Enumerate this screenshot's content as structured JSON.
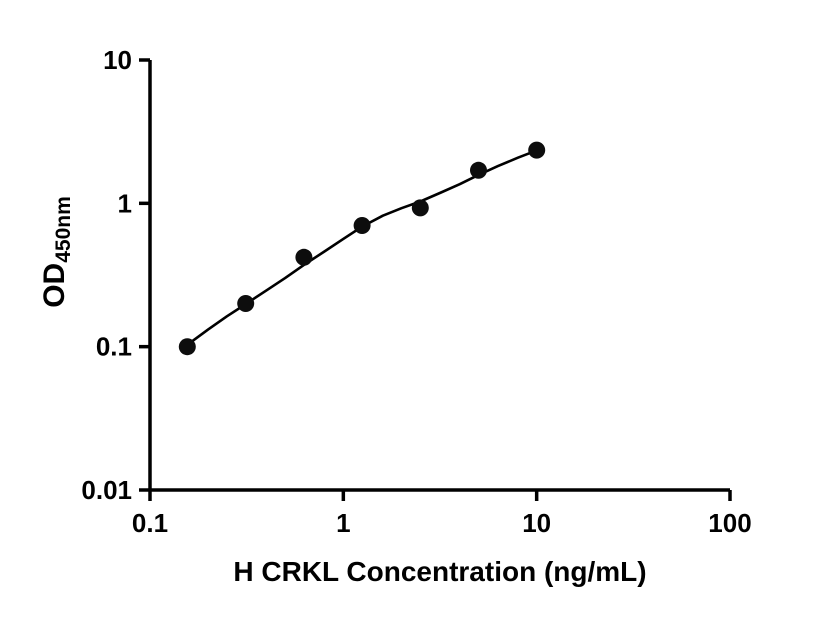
{
  "chart_data": {
    "type": "scatter",
    "title": "",
    "xlabel": "H CRKL Concentration (ng/mL)",
    "ylabel_main": "OD",
    "ylabel_sub": "450nm",
    "x_scale": "log",
    "y_scale": "log",
    "xlim": [
      0.1,
      100
    ],
    "ylim": [
      0.01,
      10
    ],
    "x_ticks": [
      0.1,
      1,
      10,
      100
    ],
    "x_tick_labels": [
      "0.1",
      "1",
      "10",
      "100"
    ],
    "y_ticks": [
      0.01,
      0.1,
      1,
      10
    ],
    "y_tick_labels": [
      "0.01",
      "0.1",
      "1",
      "10"
    ],
    "legend": "none",
    "grid": false,
    "points": {
      "x": [
        0.156,
        0.3125,
        0.625,
        1.25,
        2.5,
        5,
        10
      ],
      "y": [
        0.1,
        0.2,
        0.42,
        0.7,
        0.93,
        1.7,
        2.35
      ]
    },
    "fit_curve": {
      "x": [
        0.156,
        0.2,
        0.25,
        0.3125,
        0.4,
        0.5,
        0.625,
        0.8,
        1.0,
        1.25,
        1.6,
        2.0,
        2.5,
        3.2,
        4.0,
        5.0,
        6.3,
        8.0,
        10.0
      ],
      "y": [
        0.103,
        0.132,
        0.163,
        0.198,
        0.247,
        0.301,
        0.372,
        0.462,
        0.565,
        0.688,
        0.82,
        0.925,
        1.03,
        1.19,
        1.36,
        1.58,
        1.82,
        2.08,
        2.34
      ]
    },
    "point_color": "#0d0d0d",
    "line_color": "#000000",
    "axis_color": "#000000"
  }
}
